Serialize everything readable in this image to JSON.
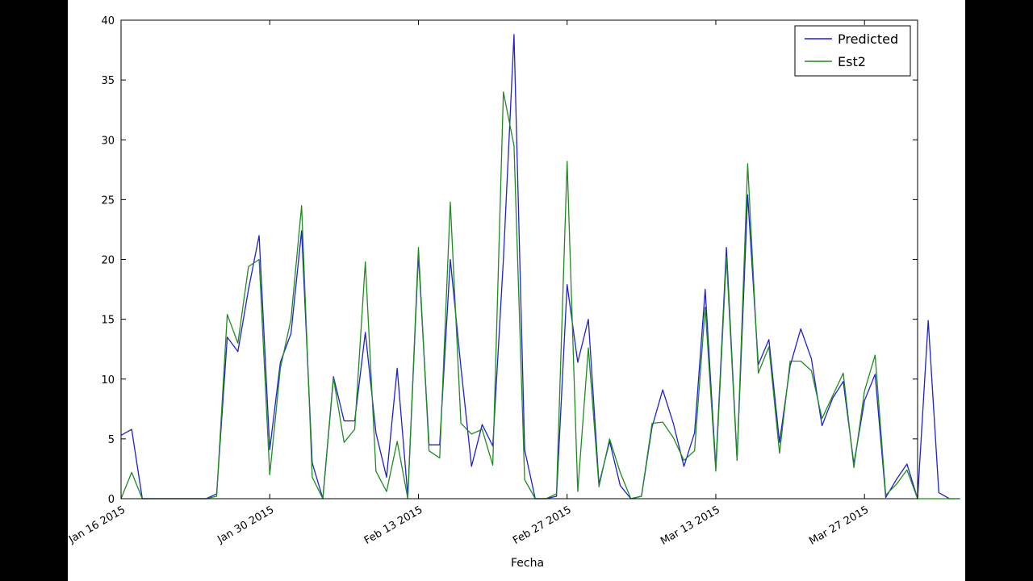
{
  "chart_data": {
    "type": "line",
    "title": "",
    "xlabel": "Fecha",
    "ylabel": "",
    "x_start": "2015-01-16",
    "x_range": [
      "2015-01-16",
      "2015-04-01"
    ],
    "ylim": [
      0,
      40
    ],
    "y_ticks": [
      0,
      5,
      10,
      15,
      20,
      25,
      30,
      35,
      40
    ],
    "x_ticks": [
      {
        "date": "2015-01-16",
        "label": "Jan 16 2015"
      },
      {
        "date": "2015-01-30",
        "label": "Jan 30 2015"
      },
      {
        "date": "2015-02-13",
        "label": "Feb 13 2015"
      },
      {
        "date": "2015-02-27",
        "label": "Feb 27 2015"
      },
      {
        "date": "2015-03-13",
        "label": "Mar 13 2015"
      },
      {
        "date": "2015-03-27",
        "label": "Mar 27 2015"
      }
    ],
    "grid": false,
    "legend_position": "top-right",
    "series": [
      {
        "name": "Predicted",
        "color": "#1f1fd6",
        "values": [
          5.3,
          5.8,
          0,
          0,
          0,
          0,
          0,
          0,
          0,
          0.4,
          13.5,
          12.3,
          17.5,
          22,
          4.1,
          11.4,
          13.8,
          22.4,
          3,
          0,
          10.2,
          6.5,
          6.5,
          13.9,
          5.5,
          1.8,
          10.9,
          0.2,
          20.4,
          4.5,
          4.5,
          20,
          11,
          2.7,
          6.2,
          4.4,
          20,
          38.8,
          4.1,
          0,
          0,
          0.2,
          17.9,
          11.4,
          15,
          1.2,
          4.8,
          1.1,
          0,
          0.2,
          6,
          9.1,
          6.3,
          2.7,
          5.5,
          17.5,
          2.6,
          21,
          3.3,
          25.4,
          11.2,
          13.3,
          4.7,
          11.1,
          14.2,
          11.7,
          6.1,
          8.4,
          9.8,
          2.9,
          8.2,
          10.4,
          0.1,
          1.6,
          2.9,
          0,
          14.9,
          0.5,
          0,
          0
        ]
      },
      {
        "name": "Est2",
        "color": "#1f8c1f",
        "values": [
          0,
          2.2,
          0,
          0,
          0,
          0,
          0,
          0,
          0,
          0.2,
          15.4,
          13,
          19.4,
          20,
          2,
          10.9,
          15,
          24.5,
          1.8,
          0,
          10.1,
          4.7,
          5.8,
          19.8,
          2.3,
          0.6,
          4.8,
          0,
          21,
          4,
          3.4,
          24.8,
          6.3,
          5.4,
          5.8,
          2.8,
          34,
          29.5,
          1.6,
          0,
          0,
          0.4,
          28.2,
          0.6,
          12.6,
          1,
          5,
          2.2,
          0,
          0.2,
          6.3,
          6.4,
          5.1,
          3.2,
          4,
          16,
          2.3,
          20.2,
          3.2,
          28,
          10.5,
          12.7,
          3.8,
          11.5,
          11.5,
          10.7,
          6.7,
          8.6,
          10.5,
          2.6,
          9,
          12,
          0.3,
          1.2,
          2.4,
          0,
          0,
          0,
          0,
          0
        ]
      }
    ]
  }
}
